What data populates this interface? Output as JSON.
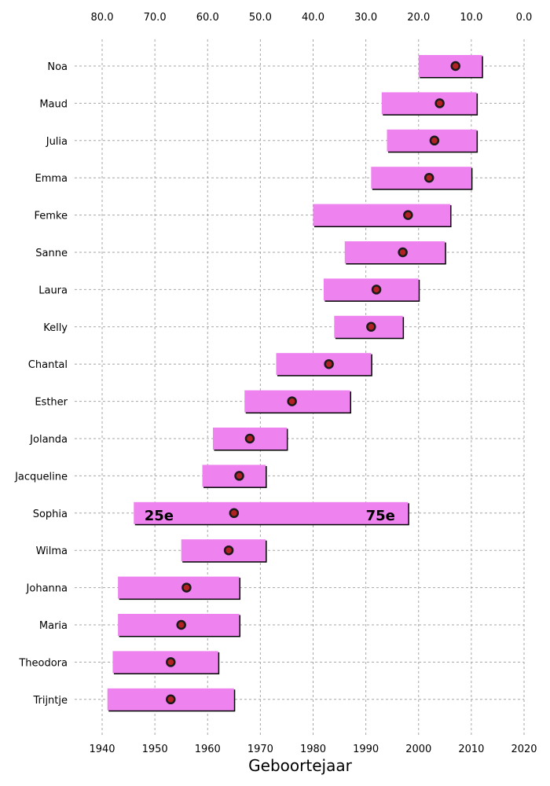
{
  "chart_data": {
    "type": "bar",
    "orientation": "horizontal-range",
    "xlabel": "Geboortejaar",
    "x_range": [
      1935,
      2020
    ],
    "x_ticks": [
      1940,
      1950,
      1960,
      1970,
      1980,
      1990,
      2000,
      2010,
      2020
    ],
    "top_axis_ticks": [
      "80.0",
      "70.0",
      "60.0",
      "50.0",
      "40.0",
      "30.0",
      "20.0",
      "10.0",
      "0.0"
    ],
    "top_axis_values": [
      80,
      70,
      60,
      50,
      40,
      30,
      20,
      10,
      0
    ],
    "top_axis_reference_year": 2020,
    "grid": true,
    "bar_color": "#ee82ee",
    "marker_color": "#b22222",
    "categories": [
      "Noa",
      "Maud",
      "Julia",
      "Emma",
      "Femke",
      "Sanne",
      "Laura",
      "Kelly",
      "Chantal",
      "Esther",
      "Jolanda",
      "Jacqueline",
      "Sophia",
      "Wilma",
      "Johanna",
      "Maria",
      "Theodora",
      "Trijntje"
    ],
    "p25": [
      2000,
      1993,
      1994,
      1991,
      1980,
      1986,
      1982,
      1984,
      1973,
      1967,
      1961,
      1959,
      1946,
      1955,
      1943,
      1943,
      1942,
      1941
    ],
    "p75": [
      2012,
      2011,
      2011,
      2010,
      2006,
      2005,
      2000,
      1997,
      1991,
      1987,
      1975,
      1971,
      1998,
      1971,
      1966,
      1966,
      1962,
      1965
    ],
    "median": [
      2007,
      2004,
      2003,
      2002,
      1998,
      1997,
      1992,
      1991,
      1983,
      1976,
      1968,
      1966,
      1965,
      1964,
      1956,
      1955,
      1953,
      1953
    ],
    "annotations": [
      {
        "text": "25e",
        "category": "Sophia",
        "x": 1948
      },
      {
        "text": "75e",
        "category": "Sophia",
        "x": 1990
      }
    ]
  }
}
